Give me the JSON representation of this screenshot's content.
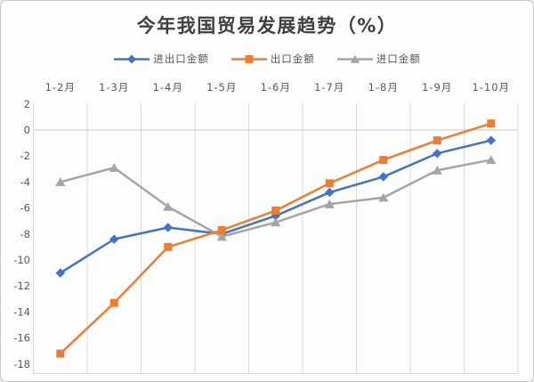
{
  "chart": {
    "title": "今年我国贸易发展趋势（%）",
    "colors": {
      "series_blue": "#4472C4",
      "series_orange": "#ED7D31",
      "series_gray": "#A5A5A5",
      "gridline": "#DADADA",
      "zero_axis_line": "#C6C6C6",
      "axis_text": "#595959",
      "title_text": "#404040",
      "background": "#FDFDFD",
      "frame_border": "#C9C9C9"
    }
  },
  "chart_data": {
    "type": "line",
    "title": "今年我国贸易发展趋势（%）",
    "categories": [
      "1-2月",
      "1-3月",
      "1-4月",
      "1-5月",
      "1-6月",
      "1-7月",
      "1-8月",
      "1-9月",
      "1-10月"
    ],
    "series": [
      {
        "name": "进出口金额",
        "marker": "diamond",
        "color": "#4472C4",
        "values": [
          -11.0,
          -8.4,
          -7.5,
          -8.0,
          -6.6,
          -4.8,
          -3.6,
          -1.8,
          -0.8
        ]
      },
      {
        "name": "出口金额",
        "marker": "square",
        "color": "#ED7D31",
        "values": [
          -17.2,
          -13.3,
          -9.0,
          -7.7,
          -6.2,
          -4.1,
          -2.3,
          -0.8,
          0.5
        ]
      },
      {
        "name": "进口金额",
        "marker": "triangle",
        "color": "#A5A5A5",
        "values": [
          -4.0,
          -2.9,
          -5.9,
          -8.2,
          -7.1,
          -5.7,
          -5.2,
          -3.1,
          -2.3
        ]
      }
    ],
    "xlabel": "",
    "ylabel": "",
    "ylim": [
      -18.6,
      2
    ],
    "yticks": [
      2,
      0,
      -2,
      -4,
      -6,
      -8,
      -10,
      -12,
      -14,
      -16,
      -18
    ],
    "grid": "vertical lines at category boundaries; horizontal line at 0 only",
    "legend_position": "top",
    "x_axis_labels_position": "top"
  }
}
